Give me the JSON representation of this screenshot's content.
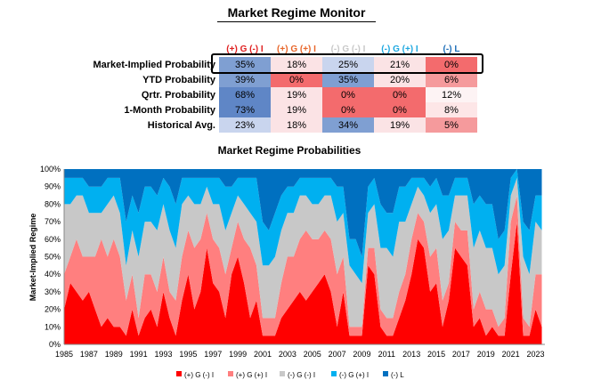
{
  "title": "Market Regime Monitor",
  "monitor": {
    "columns": [
      {
        "label": "(+) G (-) I",
        "color": "#e02020"
      },
      {
        "label": "(+) G (+) I",
        "color": "#e8662a"
      },
      {
        "label": "(-) G (-) I",
        "color": "#c8c8c8"
      },
      {
        "label": "(-) G (+) I",
        "color": "#1ea8e0"
      },
      {
        "label": "(-) L",
        "color": "#1f6fb8"
      }
    ],
    "rows": [
      {
        "label": "Market-Implied Probability",
        "values": [
          "35%",
          "18%",
          "25%",
          "21%",
          "0%"
        ]
      },
      {
        "label": "YTD Probability",
        "values": [
          "39%",
          "0%",
          "35%",
          "20%",
          "6%"
        ]
      },
      {
        "label": "Qrtr. Probability",
        "values": [
          "68%",
          "19%",
          "0%",
          "0%",
          "12%"
        ]
      },
      {
        "label": "1-Month Probability",
        "values": [
          "73%",
          "19%",
          "0%",
          "0%",
          "8%"
        ]
      },
      {
        "label": "Historical Avg.",
        "values": [
          "23%",
          "18%",
          "34%",
          "19%",
          "5%"
        ]
      }
    ]
  },
  "chart_data": {
    "type": "area",
    "stacked": true,
    "normalized": true,
    "title": "Market Regime Probabilities",
    "xlabel": "",
    "ylabel": "Market-Implied Regime",
    "xlim": [
      1985,
      2023.75
    ],
    "ylim": [
      0,
      100
    ],
    "x_ticks": [
      "1985",
      "1987",
      "1989",
      "1991",
      "1993",
      "1995",
      "1997",
      "1999",
      "2001",
      "2003",
      "2005",
      "2007",
      "2009",
      "2011",
      "2013",
      "2015",
      "2017",
      "2019",
      "2021",
      "2023"
    ],
    "y_ticks": [
      "0%",
      "10%",
      "20%",
      "30%",
      "40%",
      "50%",
      "60%",
      "70%",
      "80%",
      "90%",
      "100%"
    ],
    "grid": false,
    "legend_position": "bottom",
    "colors": [
      "#ff0000",
      "#ff7f7f",
      "#c8c8c8",
      "#00b0f0",
      "#0070c0"
    ],
    "x": [
      1985.0,
      1985.5,
      1986.0,
      1986.5,
      1987.0,
      1987.5,
      1988.0,
      1988.5,
      1989.0,
      1989.5,
      1990.0,
      1990.5,
      1991.0,
      1991.5,
      1992.0,
      1992.5,
      1993.0,
      1993.5,
      1994.0,
      1994.5,
      1995.0,
      1995.5,
      1996.0,
      1996.5,
      1997.0,
      1997.5,
      1998.0,
      1998.5,
      1999.0,
      1999.5,
      2000.0,
      2000.5,
      2001.0,
      2001.5,
      2002.0,
      2002.5,
      2003.0,
      2003.5,
      2004.0,
      2004.5,
      2005.0,
      2005.5,
      2006.0,
      2006.5,
      2007.0,
      2007.5,
      2008.0,
      2008.5,
      2009.0,
      2009.5,
      2010.0,
      2010.5,
      2011.0,
      2011.5,
      2012.0,
      2012.5,
      2013.0,
      2013.5,
      2014.0,
      2014.5,
      2015.0,
      2015.5,
      2016.0,
      2016.5,
      2017.0,
      2017.5,
      2018.0,
      2018.5,
      2019.0,
      2019.5,
      2020.0,
      2020.5,
      2021.0,
      2021.5,
      2022.0,
      2022.5,
      2023.0,
      2023.5
    ],
    "series": [
      {
        "name": "(+) G (-) I",
        "values": [
          20,
          35,
          30,
          25,
          30,
          20,
          10,
          15,
          10,
          10,
          5,
          20,
          5,
          15,
          20,
          10,
          30,
          15,
          5,
          25,
          40,
          20,
          30,
          55,
          35,
          30,
          15,
          40,
          50,
          35,
          15,
          25,
          5,
          5,
          5,
          15,
          20,
          25,
          30,
          25,
          30,
          35,
          40,
          30,
          10,
          30,
          5,
          5,
          5,
          45,
          40,
          10,
          5,
          5,
          15,
          25,
          40,
          60,
          55,
          30,
          35,
          10,
          25,
          55,
          50,
          45,
          10,
          15,
          5,
          10,
          5,
          5,
          40,
          70,
          5,
          5,
          20,
          10
        ]
      },
      {
        "name": "(+) G (+) I",
        "values": [
          20,
          15,
          30,
          25,
          20,
          30,
          50,
          35,
          50,
          40,
          20,
          20,
          10,
          25,
          20,
          20,
          20,
          15,
          20,
          25,
          25,
          35,
          30,
          20,
          25,
          25,
          25,
          15,
          20,
          25,
          40,
          20,
          10,
          10,
          10,
          20,
          30,
          25,
          30,
          40,
          30,
          25,
          25,
          30,
          30,
          20,
          5,
          5,
          5,
          10,
          15,
          10,
          10,
          10,
          15,
          15,
          20,
          15,
          15,
          20,
          20,
          15,
          10,
          15,
          15,
          20,
          10,
          15,
          15,
          10,
          5,
          10,
          30,
          15,
          10,
          5,
          20,
          30
        ]
      },
      {
        "name": "(-) G (-) I",
        "values": [
          40,
          30,
          25,
          35,
          25,
          25,
          15,
          30,
          25,
          25,
          20,
          25,
          35,
          30,
          30,
          35,
          30,
          35,
          30,
          30,
          20,
          25,
          20,
          15,
          20,
          25,
          25,
          20,
          15,
          20,
          20,
          25,
          30,
          30,
          35,
          30,
          25,
          25,
          25,
          20,
          20,
          20,
          20,
          25,
          30,
          25,
          35,
          30,
          25,
          20,
          25,
          35,
          40,
          35,
          40,
          30,
          20,
          15,
          15,
          25,
          25,
          35,
          30,
          15,
          20,
          20,
          35,
          35,
          35,
          35,
          30,
          30,
          15,
          10,
          35,
          30,
          30,
          25
        ]
      },
      {
        "name": "(-) G (+) I",
        "values": [
          15,
          15,
          10,
          10,
          15,
          15,
          15,
          15,
          10,
          20,
          25,
          20,
          25,
          20,
          20,
          20,
          15,
          25,
          25,
          15,
          10,
          15,
          15,
          5,
          15,
          15,
          25,
          15,
          10,
          15,
          20,
          25,
          25,
          20,
          25,
          20,
          15,
          15,
          10,
          10,
          15,
          15,
          10,
          10,
          20,
          15,
          15,
          20,
          15,
          15,
          15,
          25,
          20,
          25,
          20,
          20,
          15,
          5,
          10,
          15,
          15,
          25,
          20,
          10,
          10,
          10,
          25,
          20,
          25,
          25,
          20,
          20,
          10,
          5,
          20,
          25,
          15,
          20
        ]
      },
      {
        "name": "(-) L",
        "values": [
          5,
          5,
          5,
          5,
          10,
          10,
          10,
          5,
          5,
          5,
          30,
          15,
          25,
          10,
          10,
          15,
          5,
          10,
          20,
          5,
          5,
          5,
          5,
          5,
          5,
          5,
          10,
          10,
          5,
          5,
          5,
          5,
          30,
          35,
          25,
          15,
          10,
          10,
          5,
          5,
          5,
          5,
          5,
          5,
          10,
          10,
          40,
          40,
          50,
          10,
          5,
          20,
          25,
          25,
          10,
          10,
          5,
          5,
          5,
          10,
          5,
          15,
          15,
          5,
          5,
          5,
          20,
          15,
          20,
          20,
          40,
          35,
          5,
          0,
          30,
          35,
          15,
          15
        ]
      }
    ]
  }
}
